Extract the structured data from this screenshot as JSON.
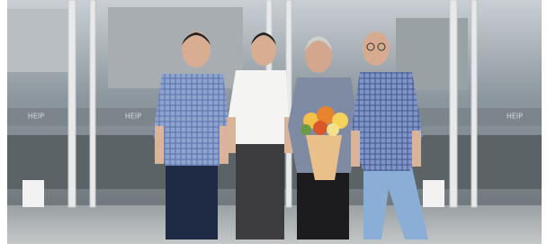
{
  "signs": [
    "HEIP",
    "HEIP",
    "HEIP"
  ]
}
